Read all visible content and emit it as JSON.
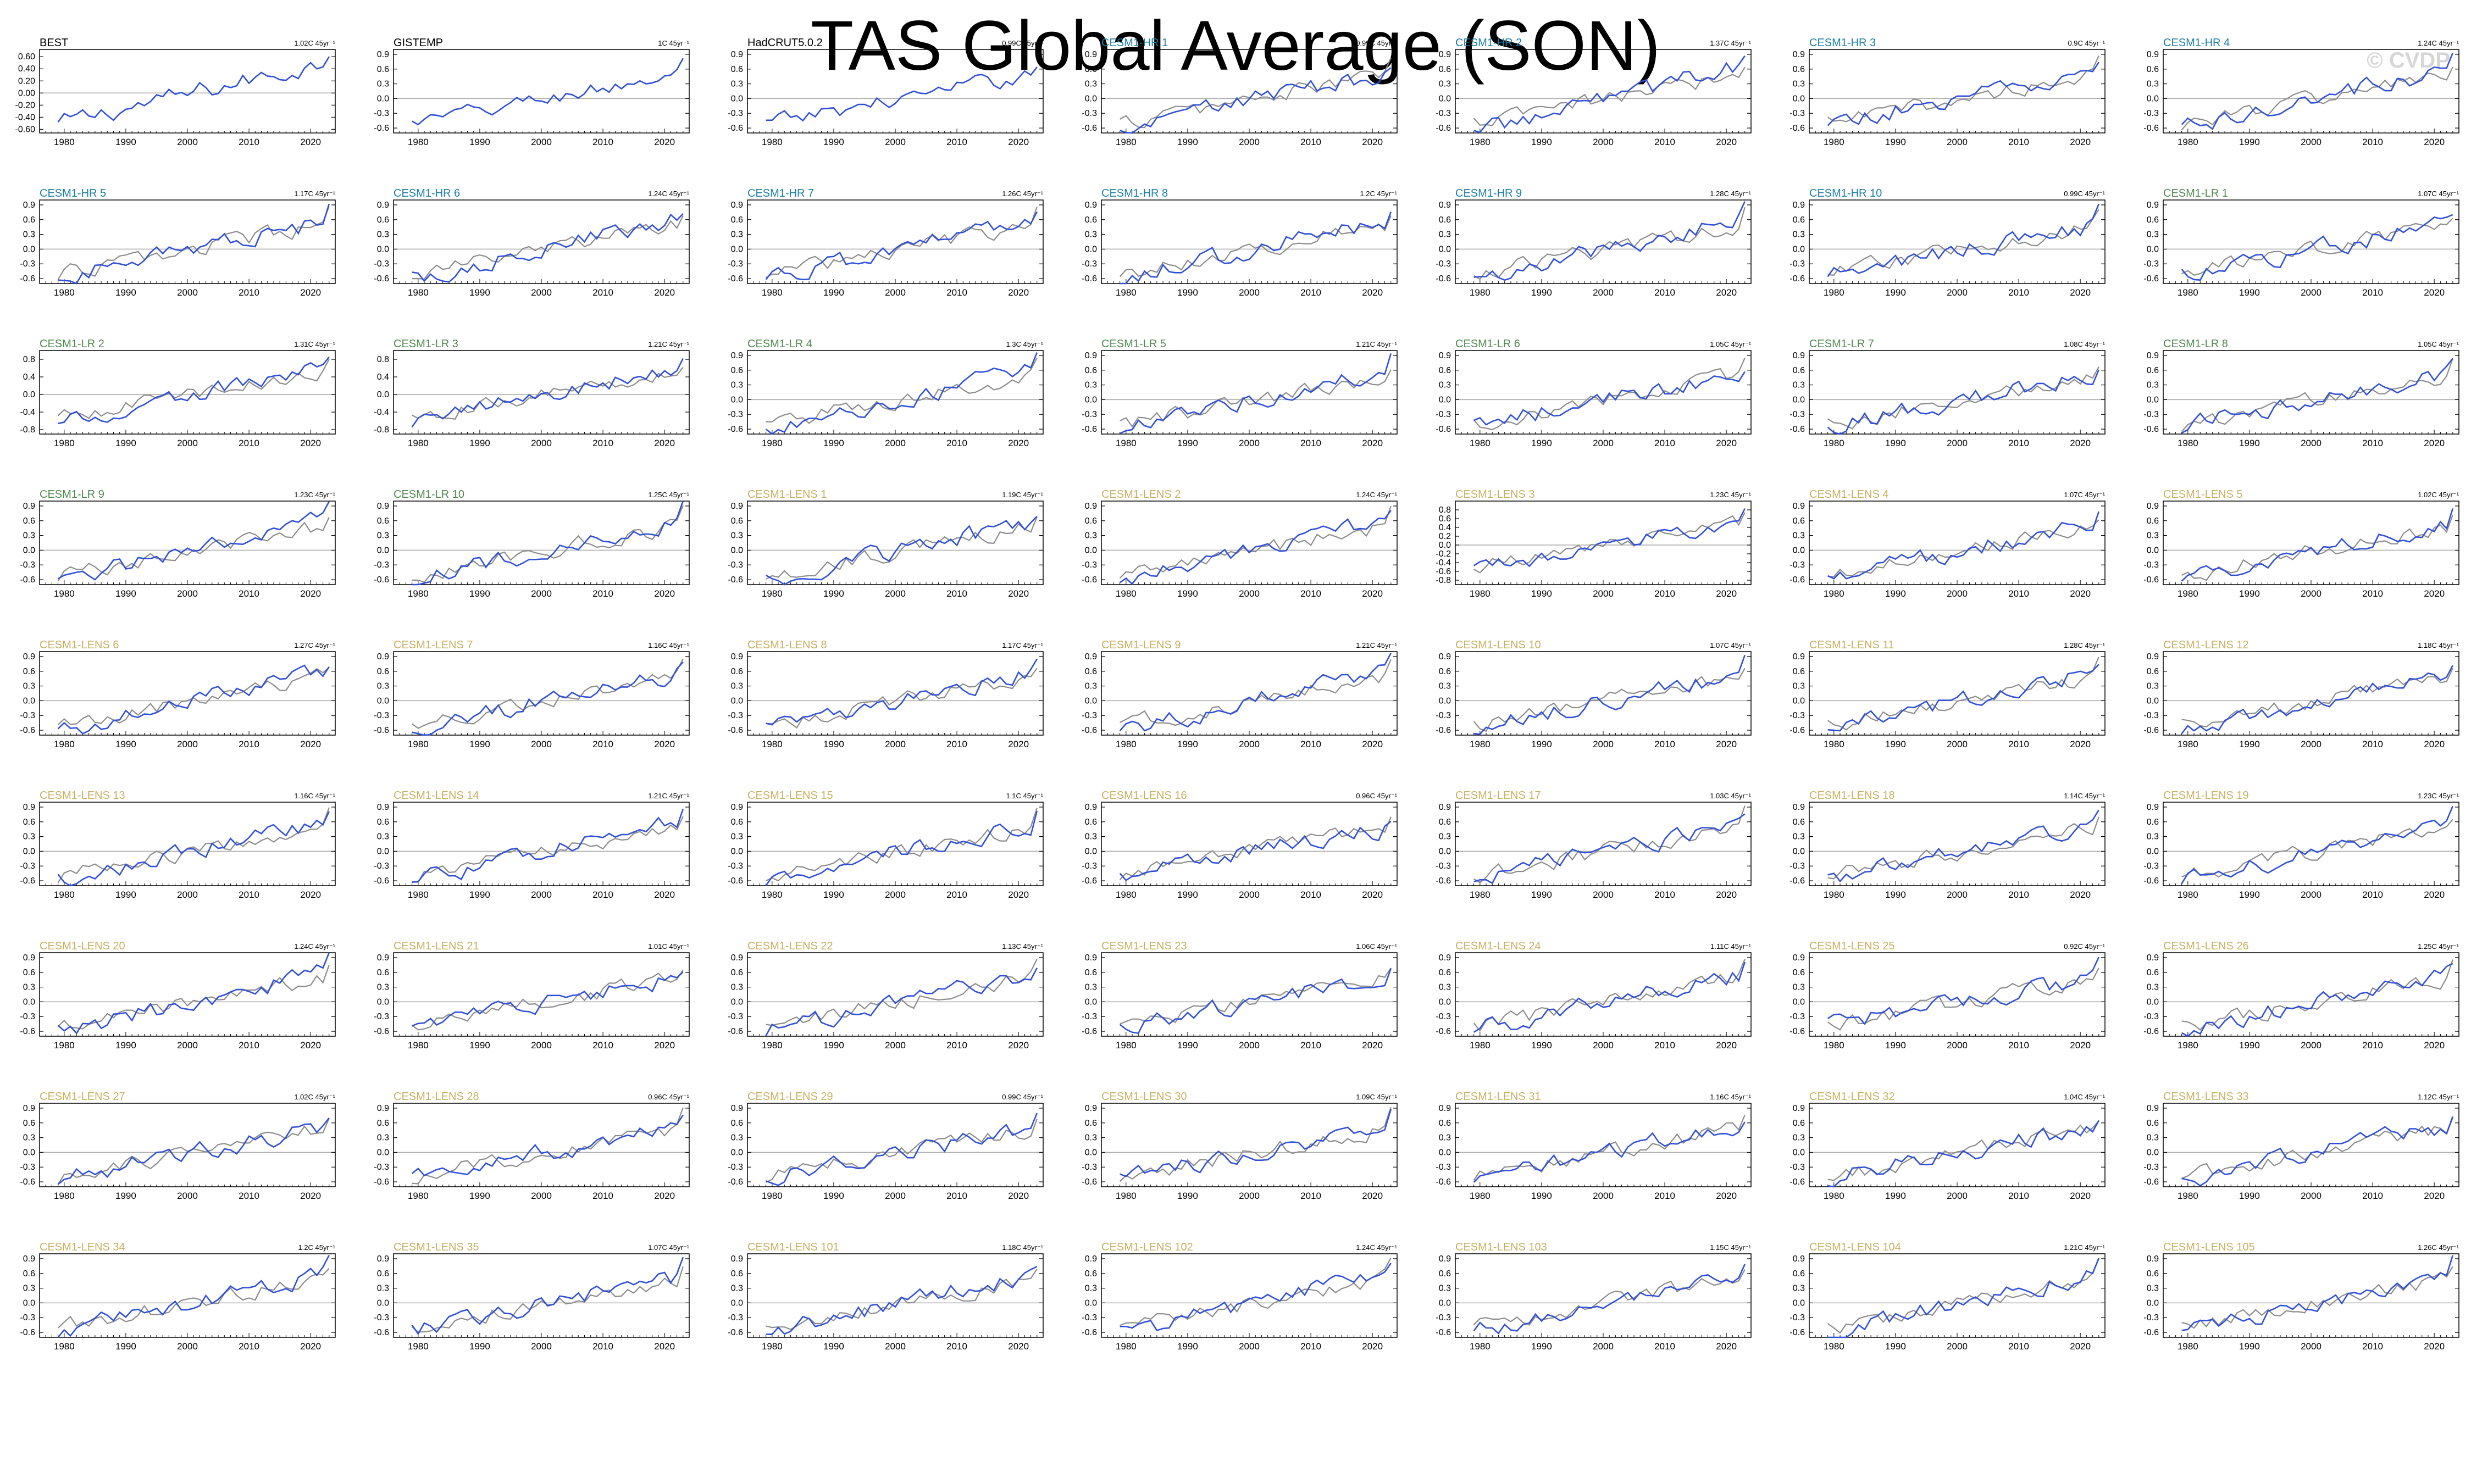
{
  "title": "TAS Global Average (SON)",
  "watermark": "© CVDP",
  "colors": {
    "observed": "#000000",
    "hr": "#1a7fa6",
    "lr": "#4f8a4f",
    "lens": "#c8b060",
    "model_line": "#3050d8",
    "obs_line": "#8c8c8c",
    "zero_line": "#a8a8a8"
  },
  "chart_data": {
    "type": "line",
    "x_range": [
      1976,
      2024
    ],
    "x_ticks": [
      "1980",
      "1990",
      "2000",
      "2010",
      "2020"
    ],
    "panels": [
      {
        "name": "BEST",
        "group": "observed",
        "trend": "1.02C 45yr⁻¹",
        "y_ticks": [
          "0.60",
          "0.40",
          "0.20",
          "0.00",
          "-0.20",
          "-0.40",
          "-0.60"
        ],
        "ylim": [
          -0.66,
          0.72
        ]
      },
      {
        "name": "GISTEMP",
        "group": "observed",
        "trend": "1C 45yr⁻¹",
        "y_ticks": [
          "0.9",
          "0.6",
          "0.3",
          "0.0",
          "-0.3",
          "-0.6"
        ],
        "ylim": [
          -0.7,
          1.0
        ]
      },
      {
        "name": "HadCRUT5.0.2",
        "group": "observed",
        "trend": "0.99C 45yr⁻¹",
        "y_ticks": [
          "0.9",
          "0.6",
          "0.3",
          "0.0",
          "-0.3",
          "-0.6"
        ],
        "ylim": [
          -0.7,
          1.0
        ]
      },
      {
        "name": "CESM1-HR 1",
        "group": "hr",
        "trend": "0.99C 45yr⁻¹",
        "y_ticks": [
          "0.9",
          "0.6",
          "0.3",
          "0.0",
          "-0.3",
          "-0.6"
        ],
        "ylim": [
          -0.7,
          1.0
        ]
      },
      {
        "name": "CESM1-HR 2",
        "group": "hr",
        "trend": "1.37C 45yr⁻¹",
        "y_ticks": [
          "0.9",
          "0.6",
          "0.3",
          "0.0",
          "-0.3",
          "-0.6"
        ],
        "ylim": [
          -0.7,
          1.0
        ]
      },
      {
        "name": "CESM1-HR 3",
        "group": "hr",
        "trend": "0.9C 45yr⁻¹",
        "y_ticks": [
          "0.9",
          "0.6",
          "0.3",
          "0.0",
          "-0.3",
          "-0.6"
        ],
        "ylim": [
          -0.7,
          1.0
        ]
      },
      {
        "name": "CESM1-HR 4",
        "group": "hr",
        "trend": "1.24C 45yr⁻¹",
        "y_ticks": [
          "0.9",
          "0.6",
          "0.3",
          "0.0",
          "-0.3",
          "-0.6"
        ],
        "ylim": [
          -0.7,
          1.0
        ]
      },
      {
        "name": "CESM1-HR 5",
        "group": "hr",
        "trend": "1.17C 45yr⁻¹",
        "y_ticks": [
          "0.9",
          "0.6",
          "0.3",
          "0.0",
          "-0.3",
          "-0.6"
        ],
        "ylim": [
          -0.7,
          1.0
        ]
      },
      {
        "name": "CESM1-HR 6",
        "group": "hr",
        "trend": "1.24C 45yr⁻¹",
        "y_ticks": [
          "0.9",
          "0.6",
          "0.3",
          "0.0",
          "-0.3",
          "-0.6"
        ],
        "ylim": [
          -0.7,
          1.0
        ]
      },
      {
        "name": "CESM1-HR 7",
        "group": "hr",
        "trend": "1.26C 45yr⁻¹",
        "y_ticks": [
          "0.9",
          "0.6",
          "0.3",
          "0.0",
          "-0.3",
          "-0.6"
        ],
        "ylim": [
          -0.7,
          1.0
        ]
      },
      {
        "name": "CESM1-HR 8",
        "group": "hr",
        "trend": "1.2C 45yr⁻¹",
        "y_ticks": [
          "0.9",
          "0.6",
          "0.3",
          "0.0",
          "-0.3",
          "-0.6"
        ],
        "ylim": [
          -0.7,
          1.0
        ]
      },
      {
        "name": "CESM1-HR 9",
        "group": "hr",
        "trend": "1.28C 45yr⁻¹",
        "y_ticks": [
          "0.9",
          "0.6",
          "0.3",
          "0.0",
          "-0.3",
          "-0.6"
        ],
        "ylim": [
          -0.7,
          1.0
        ]
      },
      {
        "name": "CESM1-HR 10",
        "group": "hr",
        "trend": "0.99C 45yr⁻¹",
        "y_ticks": [
          "0.9",
          "0.6",
          "0.3",
          "0.0",
          "-0.3",
          "-0.6"
        ],
        "ylim": [
          -0.7,
          1.0
        ]
      },
      {
        "name": "CESM1-LR 1",
        "group": "lr",
        "trend": "1.07C 45yr⁻¹",
        "y_ticks": [
          "0.9",
          "0.6",
          "0.3",
          "0.0",
          "-0.3",
          "-0.6"
        ],
        "ylim": [
          -0.7,
          1.0
        ]
      },
      {
        "name": "CESM1-LR 2",
        "group": "lr",
        "trend": "1.31C 45yr⁻¹",
        "y_ticks": [
          "0.8",
          "0.4",
          "0.0",
          "-0.4",
          "-0.8"
        ],
        "ylim": [
          -0.9,
          1.0
        ]
      },
      {
        "name": "CESM1-LR 3",
        "group": "lr",
        "trend": "1.21C 45yr⁻¹",
        "y_ticks": [
          "0.8",
          "0.4",
          "0.0",
          "-0.4",
          "-0.8"
        ],
        "ylim": [
          -0.9,
          1.0
        ]
      },
      {
        "name": "CESM1-LR 4",
        "group": "lr",
        "trend": "1.3C 45yr⁻¹",
        "y_ticks": [
          "0.9",
          "0.6",
          "0.3",
          "0.0",
          "-0.3",
          "-0.6"
        ],
        "ylim": [
          -0.7,
          1.0
        ]
      },
      {
        "name": "CESM1-LR 5",
        "group": "lr",
        "trend": "1.21C 45yr⁻¹",
        "y_ticks": [
          "0.9",
          "0.6",
          "0.3",
          "0.0",
          "-0.3",
          "-0.6"
        ],
        "ylim": [
          -0.7,
          1.0
        ]
      },
      {
        "name": "CESM1-LR 6",
        "group": "lr",
        "trend": "1.05C 45yr⁻¹",
        "y_ticks": [
          "0.9",
          "0.6",
          "0.3",
          "0.0",
          "-0.3",
          "-0.6"
        ],
        "ylim": [
          -0.7,
          1.0
        ]
      },
      {
        "name": "CESM1-LR 7",
        "group": "lr",
        "trend": "1.08C 45yr⁻¹",
        "y_ticks": [
          "0.9",
          "0.6",
          "0.3",
          "0.0",
          "-0.3",
          "-0.6"
        ],
        "ylim": [
          -0.7,
          1.0
        ]
      },
      {
        "name": "CESM1-LR 8",
        "group": "lr",
        "trend": "1.05C 45yr⁻¹",
        "y_ticks": [
          "0.9",
          "0.6",
          "0.3",
          "0.0",
          "-0.3",
          "-0.6"
        ],
        "ylim": [
          -0.7,
          1.0
        ]
      },
      {
        "name": "CESM1-LR 9",
        "group": "lr",
        "trend": "1.23C 45yr⁻¹",
        "y_ticks": [
          "0.9",
          "0.6",
          "0.3",
          "0.0",
          "-0.3",
          "-0.6"
        ],
        "ylim": [
          -0.7,
          1.0
        ]
      },
      {
        "name": "CESM1-LR 10",
        "group": "lr",
        "trend": "1.25C 45yr⁻¹",
        "y_ticks": [
          "0.9",
          "0.6",
          "0.3",
          "0.0",
          "-0.3",
          "-0.6"
        ],
        "ylim": [
          -0.7,
          1.0
        ]
      },
      {
        "name": "CESM1-LENS 1",
        "group": "lens",
        "trend": "1.19C 45yr⁻¹",
        "y_ticks": [
          "0.9",
          "0.6",
          "0.3",
          "0.0",
          "-0.3",
          "-0.6"
        ],
        "ylim": [
          -0.7,
          1.0
        ]
      },
      {
        "name": "CESM1-LENS 2",
        "group": "lens",
        "trend": "1.24C 45yr⁻¹",
        "y_ticks": [
          "0.9",
          "0.6",
          "0.3",
          "0.0",
          "-0.3",
          "-0.6"
        ],
        "ylim": [
          -0.7,
          1.0
        ]
      },
      {
        "name": "CESM1-LENS 3",
        "group": "lens",
        "trend": "1.23C 45yr⁻¹",
        "y_ticks": [
          "0.8",
          "0.6",
          "0.4",
          "0.2",
          "0.0",
          "-0.2",
          "-0.4",
          "-0.6",
          "-0.8"
        ],
        "ylim": [
          -0.9,
          1.0
        ]
      },
      {
        "name": "CESM1-LENS 4",
        "group": "lens",
        "trend": "1.07C 45yr⁻¹",
        "y_ticks": [
          "0.9",
          "0.6",
          "0.3",
          "0.0",
          "-0.3",
          "-0.6"
        ],
        "ylim": [
          -0.7,
          1.0
        ]
      },
      {
        "name": "CESM1-LENS 5",
        "group": "lens",
        "trend": "1.02C 45yr⁻¹",
        "y_ticks": [
          "0.9",
          "0.6",
          "0.3",
          "0.0",
          "-0.3",
          "-0.6"
        ],
        "ylim": [
          -0.7,
          1.0
        ]
      },
      {
        "name": "CESM1-LENS 6",
        "group": "lens",
        "trend": "1.27C 45yr⁻¹",
        "y_ticks": [
          "0.9",
          "0.6",
          "0.3",
          "0.0",
          "-0.3",
          "-0.6"
        ],
        "ylim": [
          -0.7,
          1.0
        ]
      },
      {
        "name": "CESM1-LENS 7",
        "group": "lens",
        "trend": "1.16C 45yr⁻¹",
        "y_ticks": [
          "0.9",
          "0.6",
          "0.3",
          "0.0",
          "-0.3",
          "-0.6"
        ],
        "ylim": [
          -0.7,
          1.0
        ]
      },
      {
        "name": "CESM1-LENS 8",
        "group": "lens",
        "trend": "1.17C 45yr⁻¹",
        "y_ticks": [
          "0.9",
          "0.6",
          "0.3",
          "0.0",
          "-0.3",
          "-0.6"
        ],
        "ylim": [
          -0.7,
          1.0
        ]
      },
      {
        "name": "CESM1-LENS 9",
        "group": "lens",
        "trend": "1.21C 45yr⁻¹",
        "y_ticks": [
          "0.9",
          "0.6",
          "0.3",
          "0.0",
          "-0.3",
          "-0.6"
        ],
        "ylim": [
          -0.7,
          1.0
        ]
      },
      {
        "name": "CESM1-LENS 10",
        "group": "lens",
        "trend": "1.07C 45yr⁻¹",
        "y_ticks": [
          "0.9",
          "0.6",
          "0.3",
          "0.0",
          "-0.3",
          "-0.6"
        ],
        "ylim": [
          -0.7,
          1.0
        ]
      },
      {
        "name": "CESM1-LENS 11",
        "group": "lens",
        "trend": "1.28C 45yr⁻¹",
        "y_ticks": [
          "0.9",
          "0.6",
          "0.3",
          "0.0",
          "-0.3",
          "-0.6"
        ],
        "ylim": [
          -0.7,
          1.0
        ]
      },
      {
        "name": "CESM1-LENS 12",
        "group": "lens",
        "trend": "1.18C 45yr⁻¹",
        "y_ticks": [
          "0.9",
          "0.6",
          "0.3",
          "0.0",
          "-0.3",
          "-0.6"
        ],
        "ylim": [
          -0.7,
          1.0
        ]
      },
      {
        "name": "CESM1-LENS 13",
        "group": "lens",
        "trend": "1.16C 45yr⁻¹",
        "y_ticks": [
          "0.9",
          "0.6",
          "0.3",
          "0.0",
          "-0.3",
          "-0.6"
        ],
        "ylim": [
          -0.7,
          1.0
        ]
      },
      {
        "name": "CESM1-LENS 14",
        "group": "lens",
        "trend": "1.21C 45yr⁻¹",
        "y_ticks": [
          "0.9",
          "0.6",
          "0.3",
          "0.0",
          "-0.3",
          "-0.6"
        ],
        "ylim": [
          -0.7,
          1.0
        ]
      },
      {
        "name": "CESM1-LENS 15",
        "group": "lens",
        "trend": "1.1C 45yr⁻¹",
        "y_ticks": [
          "0.9",
          "0.6",
          "0.3",
          "0.0",
          "-0.3",
          "-0.6"
        ],
        "ylim": [
          -0.7,
          1.0
        ]
      },
      {
        "name": "CESM1-LENS 16",
        "group": "lens",
        "trend": "0.96C 45yr⁻¹",
        "y_ticks": [
          "0.9",
          "0.6",
          "0.3",
          "0.0",
          "-0.3",
          "-0.6"
        ],
        "ylim": [
          -0.7,
          1.0
        ]
      },
      {
        "name": "CESM1-LENS 17",
        "group": "lens",
        "trend": "1.03C 45yr⁻¹",
        "y_ticks": [
          "0.9",
          "0.6",
          "0.3",
          "0.0",
          "-0.3",
          "-0.6"
        ],
        "ylim": [
          -0.7,
          1.0
        ]
      },
      {
        "name": "CESM1-LENS 18",
        "group": "lens",
        "trend": "1.14C 45yr⁻¹",
        "y_ticks": [
          "0.9",
          "0.6",
          "0.3",
          "0.0",
          "-0.3",
          "-0.6"
        ],
        "ylim": [
          -0.7,
          1.0
        ]
      },
      {
        "name": "CESM1-LENS 19",
        "group": "lens",
        "trend": "1.23C 45yr⁻¹",
        "y_ticks": [
          "0.9",
          "0.6",
          "0.3",
          "0.0",
          "-0.3",
          "-0.6"
        ],
        "ylim": [
          -0.7,
          1.0
        ]
      },
      {
        "name": "CESM1-LENS 20",
        "group": "lens",
        "trend": "1.24C 45yr⁻¹",
        "y_ticks": [
          "0.9",
          "0.6",
          "0.3",
          "0.0",
          "-0.3",
          "-0.6"
        ],
        "ylim": [
          -0.7,
          1.0
        ]
      },
      {
        "name": "CESM1-LENS 21",
        "group": "lens",
        "trend": "1.01C 45yr⁻¹",
        "y_ticks": [
          "0.9",
          "0.6",
          "0.3",
          "0.0",
          "-0.3",
          "-0.6"
        ],
        "ylim": [
          -0.7,
          1.0
        ]
      },
      {
        "name": "CESM1-LENS 22",
        "group": "lens",
        "trend": "1.13C 45yr⁻¹",
        "y_ticks": [
          "0.9",
          "0.6",
          "0.3",
          "0.0",
          "-0.3",
          "-0.6"
        ],
        "ylim": [
          -0.7,
          1.0
        ]
      },
      {
        "name": "CESM1-LENS 23",
        "group": "lens",
        "trend": "1.06C 45yr⁻¹",
        "y_ticks": [
          "0.9",
          "0.6",
          "0.3",
          "0.0",
          "-0.3",
          "-0.6"
        ],
        "ylim": [
          -0.7,
          1.0
        ]
      },
      {
        "name": "CESM1-LENS 24",
        "group": "lens",
        "trend": "1.11C 45yr⁻¹",
        "y_ticks": [
          "0.9",
          "0.6",
          "0.3",
          "0.0",
          "-0.3",
          "-0.6"
        ],
        "ylim": [
          -0.7,
          1.0
        ]
      },
      {
        "name": "CESM1-LENS 25",
        "group": "lens",
        "trend": "0.92C 45yr⁻¹",
        "y_ticks": [
          "0.9",
          "0.6",
          "0.3",
          "0.0",
          "-0.3",
          "-0.6"
        ],
        "ylim": [
          -0.7,
          1.0
        ]
      },
      {
        "name": "CESM1-LENS 26",
        "group": "lens",
        "trend": "1.25C 45yr⁻¹",
        "y_ticks": [
          "0.9",
          "0.6",
          "0.3",
          "0.0",
          "-0.3",
          "-0.6"
        ],
        "ylim": [
          -0.7,
          1.0
        ]
      },
      {
        "name": "CESM1-LENS 27",
        "group": "lens",
        "trend": "1.02C 45yr⁻¹",
        "y_ticks": [
          "0.9",
          "0.6",
          "0.3",
          "0.0",
          "-0.3",
          "-0.6"
        ],
        "ylim": [
          -0.7,
          1.0
        ]
      },
      {
        "name": "CESM1-LENS 28",
        "group": "lens",
        "trend": "0.96C 45yr⁻¹",
        "y_ticks": [
          "0.9",
          "0.6",
          "0.3",
          "0.0",
          "-0.3",
          "-0.6"
        ],
        "ylim": [
          -0.7,
          1.0
        ]
      },
      {
        "name": "CESM1-LENS 29",
        "group": "lens",
        "trend": "0.99C 45yr⁻¹",
        "y_ticks": [
          "0.9",
          "0.6",
          "0.3",
          "0.0",
          "-0.3",
          "-0.6"
        ],
        "ylim": [
          -0.7,
          1.0
        ]
      },
      {
        "name": "CESM1-LENS 30",
        "group": "lens",
        "trend": "1.09C 45yr⁻¹",
        "y_ticks": [
          "0.9",
          "0.6",
          "0.3",
          "0.0",
          "-0.3",
          "-0.6"
        ],
        "ylim": [
          -0.7,
          1.0
        ]
      },
      {
        "name": "CESM1-LENS 31",
        "group": "lens",
        "trend": "1.16C 45yr⁻¹",
        "y_ticks": [
          "0.9",
          "0.6",
          "0.3",
          "0.0",
          "-0.3",
          "-0.6"
        ],
        "ylim": [
          -0.7,
          1.0
        ]
      },
      {
        "name": "CESM1-LENS 32",
        "group": "lens",
        "trend": "1.04C 45yr⁻¹",
        "y_ticks": [
          "0.9",
          "0.6",
          "0.3",
          "0.0",
          "-0.3",
          "-0.6"
        ],
        "ylim": [
          -0.7,
          1.0
        ]
      },
      {
        "name": "CESM1-LENS 33",
        "group": "lens",
        "trend": "1.12C 45yr⁻¹",
        "y_ticks": [
          "0.9",
          "0.6",
          "0.3",
          "0.0",
          "-0.3",
          "-0.6"
        ],
        "ylim": [
          -0.7,
          1.0
        ]
      },
      {
        "name": "CESM1-LENS 34",
        "group": "lens",
        "trend": "1.2C 45yr⁻¹",
        "y_ticks": [
          "0.9",
          "0.6",
          "0.3",
          "0.0",
          "-0.3",
          "-0.6"
        ],
        "ylim": [
          -0.7,
          1.0
        ]
      },
      {
        "name": "CESM1-LENS 35",
        "group": "lens",
        "trend": "1.07C 45yr⁻¹",
        "y_ticks": [
          "0.9",
          "0.6",
          "0.3",
          "0.0",
          "-0.3",
          "-0.6"
        ],
        "ylim": [
          -0.7,
          1.0
        ]
      },
      {
        "name": "CESM1-LENS 101",
        "group": "lens",
        "trend": "1.18C 45yr⁻¹",
        "y_ticks": [
          "0.9",
          "0.6",
          "0.3",
          "0.0",
          "-0.3",
          "-0.6"
        ],
        "ylim": [
          -0.7,
          1.0
        ]
      },
      {
        "name": "CESM1-LENS 102",
        "group": "lens",
        "trend": "1.24C 45yr⁻¹",
        "y_ticks": [
          "0.9",
          "0.6",
          "0.3",
          "0.0",
          "-0.3",
          "-0.6"
        ],
        "ylim": [
          -0.7,
          1.0
        ]
      },
      {
        "name": "CESM1-LENS 103",
        "group": "lens",
        "trend": "1.15C 45yr⁻¹",
        "y_ticks": [
          "0.9",
          "0.6",
          "0.3",
          "0.0",
          "-0.3",
          "-0.6"
        ],
        "ylim": [
          -0.7,
          1.0
        ]
      },
      {
        "name": "CESM1-LENS 104",
        "group": "lens",
        "trend": "1.21C 45yr⁻¹",
        "y_ticks": [
          "0.9",
          "0.6",
          "0.3",
          "0.0",
          "-0.3",
          "-0.6"
        ],
        "ylim": [
          -0.7,
          1.0
        ]
      },
      {
        "name": "CESM1-LENS 105",
        "group": "lens",
        "trend": "1.26C 45yr⁻¹",
        "y_ticks": [
          "0.9",
          "0.6",
          "0.3",
          "0.0",
          "-0.3",
          "-0.6"
        ],
        "ylim": [
          -0.7,
          1.0
        ]
      }
    ]
  }
}
